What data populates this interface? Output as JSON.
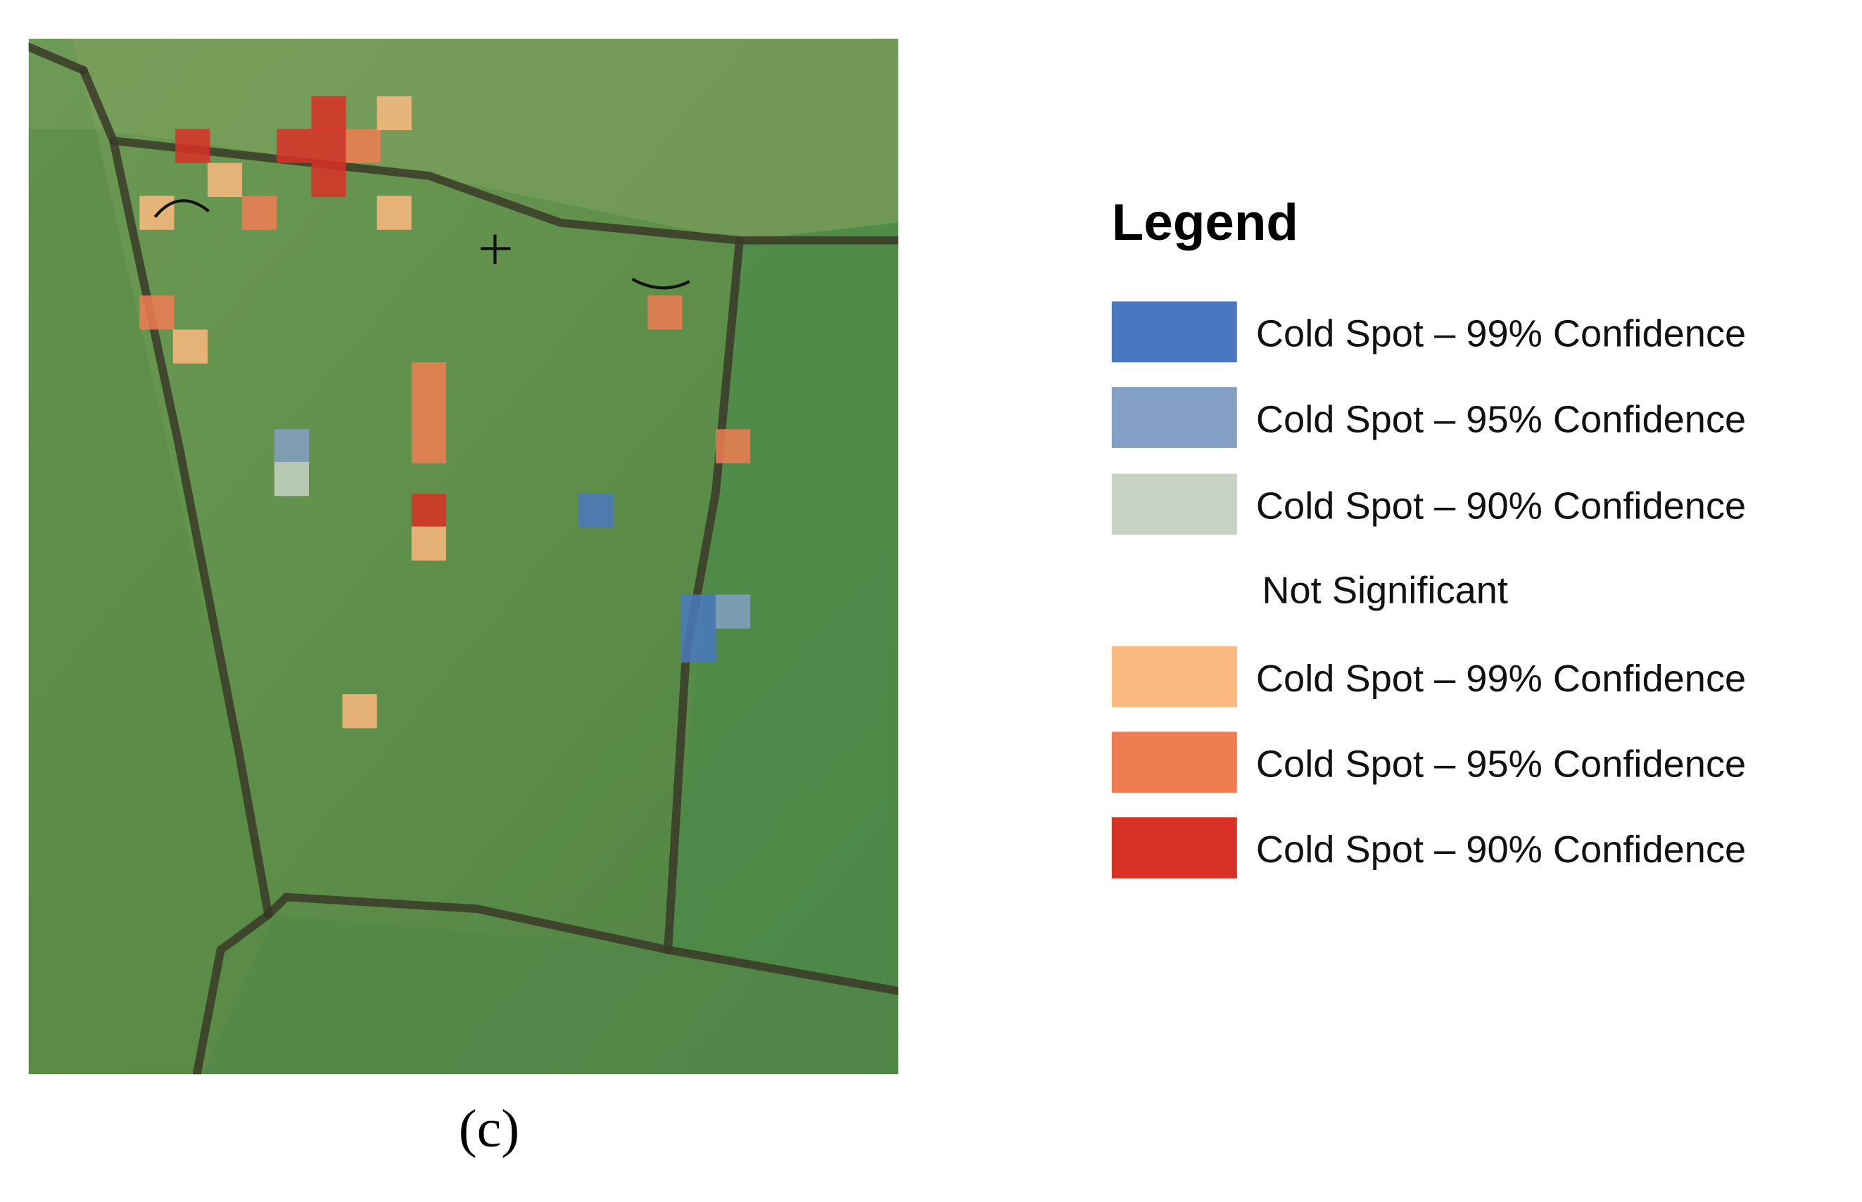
{
  "legend": {
    "title": "Legend",
    "items": [
      {
        "label": "Cold Spot – 99% Confidence",
        "color": "#4a78c0"
      },
      {
        "label": "Cold Spot – 95% Confidence",
        "color": "#849fc4"
      },
      {
        "label": "Cold Spot – 90% Confidence",
        "color": "#c7d1c4"
      },
      {
        "label": "Not Significant"
      },
      {
        "label": "Cold Spot – 99% Confidence",
        "color": "#fcb97f"
      },
      {
        "label": "Cold Spot – 95% Confidence",
        "color": "#f07c52"
      },
      {
        "label": "Cold Spot – 90% Confidence",
        "color": "#d93025"
      }
    ]
  },
  "caption": "(c)"
}
